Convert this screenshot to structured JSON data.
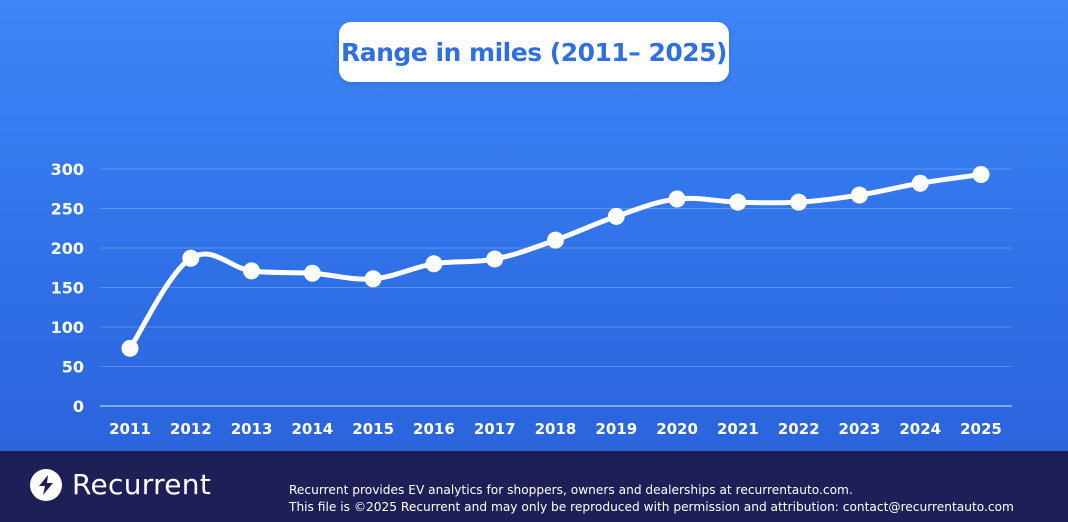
{
  "chart_data": {
    "type": "line",
    "title": "Range in miles (2011– 2025)",
    "x": [
      "2011",
      "2012",
      "2013",
      "2014",
      "2015",
      "2016",
      "2017",
      "2018",
      "2019",
      "2020",
      "2021",
      "2022",
      "2023",
      "2024",
      "2025"
    ],
    "series": [
      {
        "values": [
          73,
          187,
          171,
          168,
          161,
          180,
          186,
          210,
          240,
          262,
          258,
          258,
          267,
          282,
          293
        ]
      }
    ],
    "yticks": [
      "0",
      "50",
      "100",
      "150",
      "200",
      "250",
      "300"
    ],
    "ylim": [
      0,
      300
    ],
    "grid": true,
    "line_color": "#ffffff",
    "background_color": "#3d86f8"
  },
  "footer": {
    "brand": "Recurrent",
    "icon": "lightning-bolt-icon",
    "line1": "Recurrent provides EV analytics for shoppers, owners and dealerships at recurrentauto.com.",
    "line2": "This file is ©2025 Recurrent and may only be reproduced with permission and attribution: contact@recurrentauto.com",
    "background_color": "#1f1f58"
  }
}
